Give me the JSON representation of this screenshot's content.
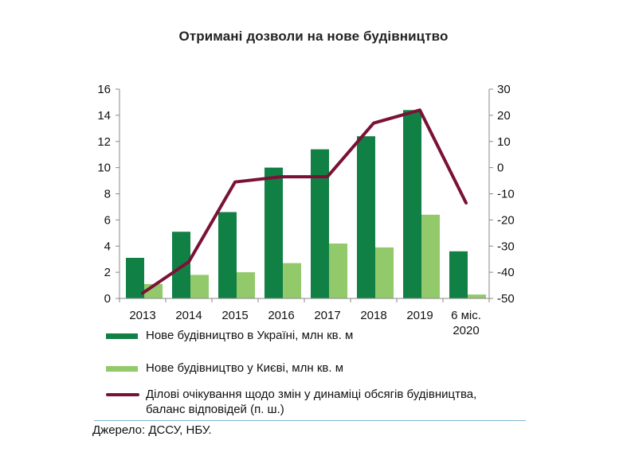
{
  "title": "Отримані дозволи на нове будівництво",
  "source": "Джерело: ДССУ, НБУ.",
  "colors": {
    "dark_green": "#118045",
    "light_green": "#92c96b",
    "line": "#7a1236",
    "rule": "#7fb6d6"
  },
  "legend": {
    "ukraine": "Нове будівництво в Україні, млн кв. м",
    "kyiv": "Нове будівництво у Києві, млн кв. м",
    "expectations_line1": "Ділові очікування щодо змін у динаміці обсягів будівництва,",
    "expectations_line2": "баланс відповідей (п. ш.)"
  },
  "chart_data": {
    "type": "bar",
    "title": "Отримані дозволи на нове будівництво",
    "categories": [
      [
        "2013"
      ],
      [
        "2014"
      ],
      [
        "2015"
      ],
      [
        "2016"
      ],
      [
        "2017"
      ],
      [
        "2018"
      ],
      [
        "2019"
      ],
      [
        "6 міс.",
        "2020"
      ]
    ],
    "series": [
      {
        "name": "Нове будівництво в Україні, млн кв. м",
        "type": "bar",
        "axis": "left",
        "color": "#118045",
        "values": [
          3.1,
          5.1,
          6.6,
          10.0,
          11.4,
          12.4,
          14.4,
          3.6
        ]
      },
      {
        "name": "Нове будівництво у Києві, млн кв. м",
        "type": "bar",
        "axis": "left",
        "color": "#92c96b",
        "values": [
          1.1,
          1.8,
          2.0,
          2.7,
          4.2,
          3.9,
          6.4,
          0.3
        ]
      },
      {
        "name": "Ділові очікування щодо змін у динаміці обсягів будівництва, баланс відповідей (п. ш.)",
        "type": "line",
        "axis": "right",
        "color": "#7a1236",
        "values": [
          -48,
          -36,
          -5.5,
          -3.5,
          -3.5,
          17,
          22,
          -13.5
        ]
      }
    ],
    "y_left": {
      "ylim": [
        0,
        16
      ],
      "ticks": [
        "0",
        "2",
        "4",
        "6",
        "8",
        "10",
        "12",
        "14",
        "16"
      ]
    },
    "y_right": {
      "ylim": [
        -50,
        30
      ],
      "ticks": [
        "-50",
        "-40",
        "-30",
        "-20",
        "-10",
        "0",
        "10",
        "20",
        "30"
      ]
    },
    "grid": false,
    "legend_position": "bottom"
  }
}
